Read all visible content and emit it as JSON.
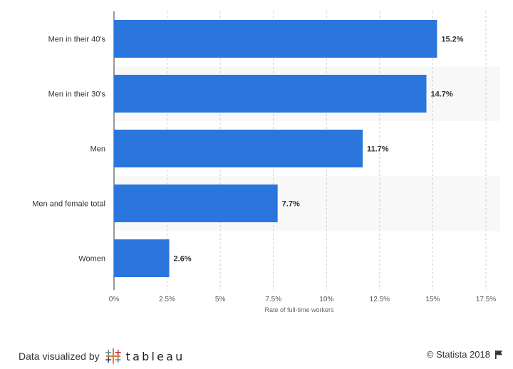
{
  "chart_data": {
    "type": "bar",
    "orientation": "horizontal",
    "categories": [
      "Men in their 40's",
      "Men in their 30's",
      "Men",
      "Men and female total",
      "Women"
    ],
    "values": [
      15.2,
      14.7,
      11.7,
      7.7,
      2.6
    ],
    "data_labels": [
      "15.2%",
      "14.7%",
      "11.7%",
      "7.7%",
      "2.6%"
    ],
    "xlabel": "Rate of full-time workers",
    "xlim": [
      0,
      17.5
    ],
    "xticks": [
      0,
      2.5,
      5,
      7.5,
      10,
      12.5,
      15,
      17.5
    ],
    "xtick_labels": [
      "0%",
      "2.5%",
      "5%",
      "7.5%",
      "10%",
      "12.5%",
      "15%",
      "17.5%"
    ],
    "grid": "vertical dashed",
    "bar_color": "#2a76dd"
  },
  "footer": {
    "visualized_by": "Data visualized by",
    "tableau": "tableau",
    "copyright": "© Statista 2018"
  }
}
